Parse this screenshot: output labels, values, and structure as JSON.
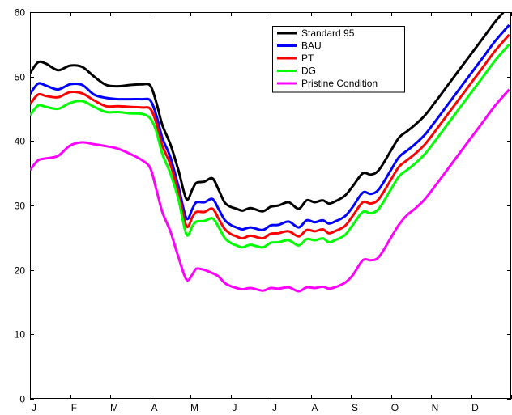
{
  "chart_data": {
    "type": "line",
    "title": "",
    "xlabel": "",
    "ylabel": "",
    "ylim": [
      0,
      60
    ],
    "yticks": [
      0,
      10,
      20,
      30,
      40,
      50,
      60
    ],
    "xlim": [
      0,
      12
    ],
    "month_labels": [
      "J",
      "F",
      "M",
      "A",
      "M",
      "J",
      "J",
      "A",
      "S",
      "O",
      "N",
      "D"
    ],
    "grid": false,
    "legend_position": "top-center",
    "x": [
      0,
      0.2,
      0.4,
      0.7,
      1.0,
      1.3,
      1.6,
      1.9,
      2.2,
      2.5,
      2.8,
      3.0,
      3.15,
      3.3,
      3.5,
      3.7,
      3.9,
      4.05,
      4.15,
      4.35,
      4.55,
      4.7,
      4.85,
      5.0,
      5.15,
      5.3,
      5.5,
      5.8,
      6.0,
      6.2,
      6.45,
      6.7,
      6.9,
      7.1,
      7.3,
      7.45,
      7.6,
      7.85,
      8.05,
      8.3,
      8.5,
      8.7,
      9.0,
      9.2,
      9.4,
      9.6,
      9.85,
      10.1,
      10.4,
      10.7,
      11.0,
      11.3,
      11.6,
      11.95
    ],
    "series": [
      {
        "name": "Standard 95",
        "color": "#000000",
        "values": [
          50.5,
          52.2,
          52.0,
          51.0,
          51.7,
          51.5,
          50.0,
          48.7,
          48.5,
          48.7,
          48.8,
          48.6,
          46.0,
          42.5,
          39.5,
          35.5,
          31.0,
          32.5,
          33.5,
          33.7,
          34.2,
          32.5,
          30.5,
          29.8,
          29.5,
          29.2,
          29.6,
          29.1,
          29.8,
          30.0,
          30.5,
          29.5,
          30.8,
          30.5,
          30.8,
          30.3,
          30.6,
          31.5,
          33.0,
          35.0,
          34.8,
          35.5,
          38.5,
          40.5,
          41.5,
          42.5,
          44.0,
          46.0,
          48.5,
          51.0,
          53.5,
          56.0,
          58.5,
          61.0
        ]
      },
      {
        "name": "BAU",
        "color": "#0000ff",
        "values": [
          47.3,
          48.9,
          48.6,
          48.0,
          48.8,
          48.7,
          47.2,
          46.7,
          46.5,
          46.5,
          46.5,
          46.3,
          44.0,
          40.5,
          37.5,
          33.0,
          28.0,
          29.5,
          30.5,
          30.5,
          31.0,
          29.5,
          27.8,
          27.0,
          26.6,
          26.3,
          26.6,
          26.2,
          26.9,
          27.0,
          27.5,
          26.6,
          27.7,
          27.4,
          27.7,
          27.2,
          27.5,
          28.3,
          29.8,
          32.0,
          31.8,
          32.5,
          35.5,
          37.5,
          38.5,
          39.5,
          41.0,
          43.0,
          45.5,
          48.0,
          50.5,
          53.0,
          55.5,
          58.0
        ]
      },
      {
        "name": "PT",
        "color": "#ff0000",
        "values": [
          45.7,
          47.2,
          47.0,
          46.8,
          47.6,
          47.4,
          46.3,
          45.4,
          45.4,
          45.3,
          45.2,
          45.0,
          42.8,
          39.3,
          36.4,
          32.0,
          26.8,
          28.2,
          29.0,
          29.0,
          29.5,
          28.0,
          26.4,
          25.6,
          25.2,
          24.9,
          25.3,
          24.9,
          25.6,
          25.7,
          26.0,
          25.2,
          26.2,
          26.0,
          26.3,
          25.7,
          26.0,
          26.8,
          28.4,
          30.5,
          30.3,
          31.0,
          34.0,
          36.0,
          37.0,
          38.0,
          39.5,
          41.5,
          44.0,
          46.5,
          49.0,
          51.5,
          54.0,
          56.5
        ]
      },
      {
        "name": "DG",
        "color": "#00ff00",
        "values": [
          44.0,
          45.5,
          45.3,
          45.0,
          45.9,
          46.2,
          45.3,
          44.5,
          44.5,
          44.3,
          44.2,
          43.5,
          41.5,
          38.0,
          35.0,
          31.0,
          25.5,
          26.8,
          27.5,
          27.6,
          28.0,
          26.7,
          25.0,
          24.2,
          23.8,
          23.5,
          23.9,
          23.5,
          24.2,
          24.3,
          24.6,
          23.8,
          24.8,
          24.6,
          24.9,
          24.3,
          24.6,
          25.4,
          27.0,
          29.0,
          28.8,
          29.5,
          32.5,
          34.5,
          35.5,
          36.5,
          38.0,
          40.0,
          42.5,
          45.0,
          47.5,
          50.0,
          52.5,
          55.0
        ]
      },
      {
        "name": "Pristine Condition",
        "color": "#ff00ff",
        "values": [
          35.5,
          37.0,
          37.3,
          37.7,
          39.3,
          39.8,
          39.5,
          39.2,
          38.8,
          38.0,
          37.0,
          35.8,
          32.5,
          29.0,
          26.0,
          22.0,
          18.5,
          19.3,
          20.2,
          20.0,
          19.5,
          19.0,
          18.0,
          17.5,
          17.2,
          17.0,
          17.2,
          16.8,
          17.2,
          17.1,
          17.3,
          16.7,
          17.3,
          17.2,
          17.4,
          17.1,
          17.3,
          18.0,
          19.2,
          21.5,
          21.5,
          22.0,
          25.0,
          27.0,
          28.5,
          29.5,
          31.0,
          33.0,
          35.5,
          38.0,
          40.5,
          43.0,
          45.5,
          48.0
        ]
      }
    ]
  }
}
